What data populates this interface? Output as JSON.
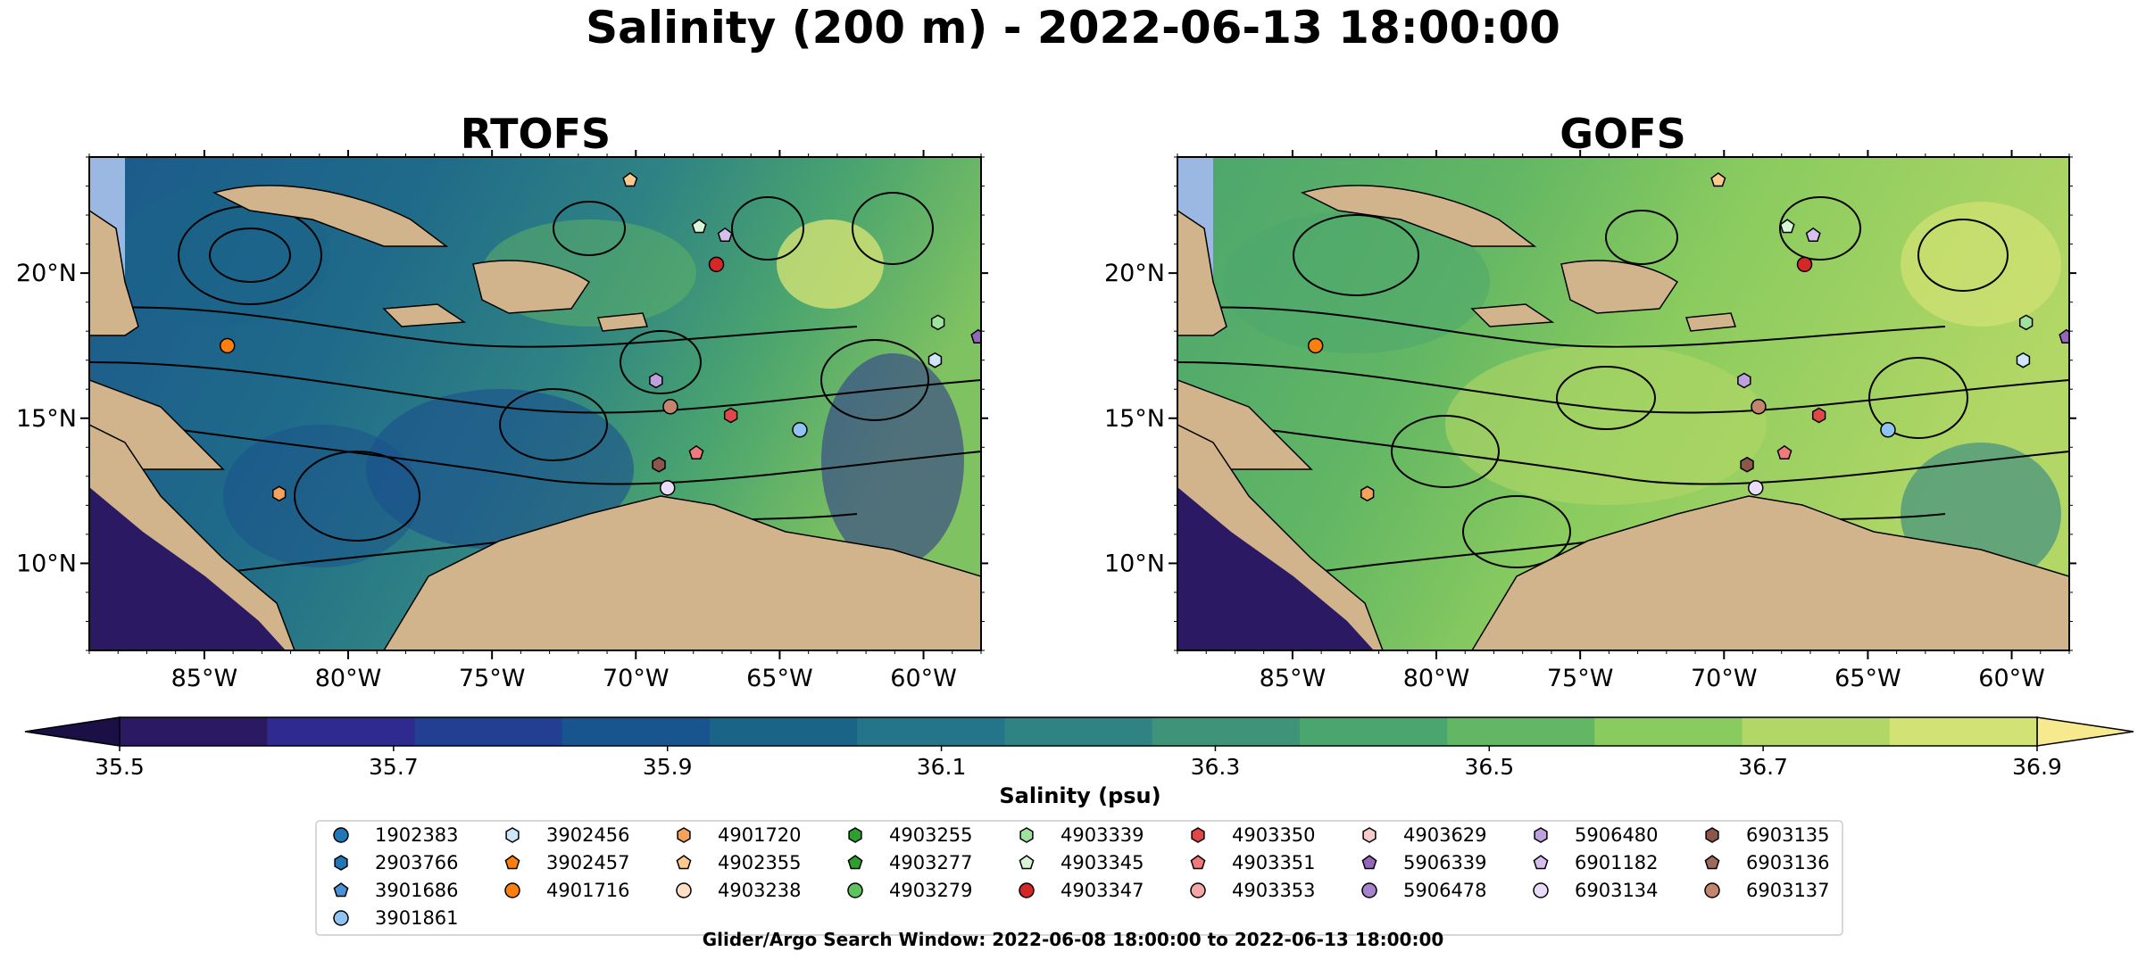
{
  "figure": {
    "title": "Salinity (200 m) - 2022-06-13 18:00:00",
    "footer": "Glider/Argo Search Window: 2022-06-08 18:00:00 to 2022-06-13 18:00:00"
  },
  "colors": {
    "land": "#d2b48c",
    "shallow": "#9ab8e2",
    "salinity_scale": [
      "#2b1a63",
      "#2e2a8f",
      "#223f91",
      "#18548e",
      "#1a6488",
      "#24748a",
      "#2f8383",
      "#3f9379",
      "#4ba56e",
      "#62b664",
      "#8acb5f",
      "#b2d766",
      "#d3e274"
    ],
    "over": "#f6e98e",
    "under": "#1a1045"
  },
  "chart_data": [
    {
      "type": "heatmap",
      "title": "RTOFS",
      "variable": "salinity at 200 m",
      "xlim": [
        -89,
        -58
      ],
      "ylim": [
        7,
        24
      ],
      "xticks": [
        "85°W",
        "80°W",
        "75°W",
        "70°W",
        "65°W",
        "60°W"
      ],
      "yticks": [
        "10°N",
        "15°N",
        "20°N"
      ],
      "streamlines": true,
      "general_level": "lower (blue-teal dominant)"
    },
    {
      "type": "heatmap",
      "title": "GOFS",
      "variable": "salinity at 200 m",
      "xlim": [
        -89,
        -58
      ],
      "ylim": [
        7,
        24
      ],
      "xticks": [
        "85°W",
        "80°W",
        "75°W",
        "70°W",
        "65°W",
        "60°W"
      ],
      "yticks": [
        "10°N",
        "15°N",
        "20°N"
      ],
      "streamlines": true,
      "general_level": "higher (green-yellow dominant)"
    }
  ],
  "colorbar": {
    "label": "Salinity (psu)",
    "min": 35.5,
    "max": 36.9,
    "step": 0.1,
    "extend": "both",
    "tick_labels": [
      "35.5",
      "35.7",
      "35.9",
      "36.1",
      "36.3",
      "36.5",
      "36.7",
      "36.9"
    ]
  },
  "floats": [
    {
      "id": "1902383",
      "marker": "circle",
      "color": "#1f77b4",
      "lon": null,
      "lat": null
    },
    {
      "id": "2903766",
      "marker": "hexagon",
      "color": "#1f77b4",
      "lon": null,
      "lat": null
    },
    {
      "id": "3901686",
      "marker": "pentagon",
      "color": "#4a90d9",
      "lon": null,
      "lat": null
    },
    {
      "id": "3901861",
      "marker": "circle",
      "color": "#8ec3f2",
      "lon": -64.3,
      "lat": 14.6
    },
    {
      "id": "3902456",
      "marker": "hexagon",
      "color": "#cfe6fa",
      "lon": -59.6,
      "lat": 17.0
    },
    {
      "id": "3902457",
      "marker": "pentagon",
      "color": "#ff7f0e",
      "lon": null,
      "lat": null
    },
    {
      "id": "4901716",
      "marker": "circle",
      "color": "#ff7f0e",
      "lon": -84.2,
      "lat": 17.5
    },
    {
      "id": "4901720",
      "marker": "hexagon",
      "color": "#f5a35a",
      "lon": -82.4,
      "lat": 12.4
    },
    {
      "id": "4902355",
      "marker": "pentagon",
      "color": "#fcc98e",
      "lon": -70.2,
      "lat": 23.2
    },
    {
      "id": "4903238",
      "marker": "circle",
      "color": "#fde0c5",
      "lon": null,
      "lat": null
    },
    {
      "id": "4903255",
      "marker": "hexagon",
      "color": "#2ca02c",
      "lon": null,
      "lat": null
    },
    {
      "id": "4903277",
      "marker": "pentagon",
      "color": "#2ca02c",
      "lon": null,
      "lat": null
    },
    {
      "id": "4903279",
      "marker": "circle",
      "color": "#5cc45c",
      "lon": null,
      "lat": null
    },
    {
      "id": "4903339",
      "marker": "hexagon",
      "color": "#9fe29f",
      "lon": -59.5,
      "lat": 18.3
    },
    {
      "id": "4903345",
      "marker": "pentagon",
      "color": "#d8f5d8",
      "lon": -67.8,
      "lat": 21.6
    },
    {
      "id": "4903347",
      "marker": "circle",
      "color": "#d62728",
      "lon": -67.2,
      "lat": 20.3
    },
    {
      "id": "4903350",
      "marker": "hexagon",
      "color": "#e04748",
      "lon": -66.7,
      "lat": 15.1
    },
    {
      "id": "4903351",
      "marker": "pentagon",
      "color": "#f07a7b",
      "lon": -67.9,
      "lat": 13.8
    },
    {
      "id": "4903353",
      "marker": "circle",
      "color": "#f4a6a6",
      "lon": null,
      "lat": null
    },
    {
      "id": "4903629",
      "marker": "hexagon",
      "color": "#f9cccc",
      "lon": null,
      "lat": null
    },
    {
      "id": "5906339",
      "marker": "pentagon",
      "color": "#9467bd",
      "lon": -58.1,
      "lat": 17.8
    },
    {
      "id": "5906478",
      "marker": "circle",
      "color": "#a783cc",
      "lon": null,
      "lat": null
    },
    {
      "id": "5906480",
      "marker": "hexagon",
      "color": "#bea1dc",
      "lon": -69.3,
      "lat": 16.3
    },
    {
      "id": "6901182",
      "marker": "pentagon",
      "color": "#d6bfee",
      "lon": -66.9,
      "lat": 21.3
    },
    {
      "id": "6903134",
      "marker": "circle",
      "color": "#eadcf8",
      "lon": -68.9,
      "lat": 12.6
    },
    {
      "id": "6903135",
      "marker": "hexagon",
      "color": "#8c564b",
      "lon": -69.2,
      "lat": 13.4
    },
    {
      "id": "6903136",
      "marker": "pentagon",
      "color": "#a0695d",
      "lon": null,
      "lat": null
    },
    {
      "id": "6903137",
      "marker": "circle",
      "color": "#c4856f",
      "lon": -68.8,
      "lat": 15.4
    }
  ]
}
